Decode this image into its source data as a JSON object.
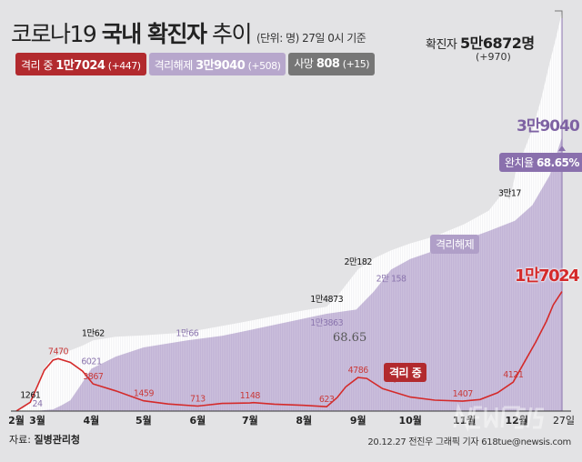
{
  "header": {
    "title_light": "코로나19",
    "title_bold": "국내 확진자",
    "title_tail": "추이",
    "subtitle": "(단위: 명) 27일 0시 기준"
  },
  "legend": [
    {
      "label": "격리 중",
      "value": "1만7024",
      "delta": "(+447)",
      "color": "#b22a2e"
    },
    {
      "label": "격리해제",
      "value": "3만9040",
      "delta": "(+508)",
      "color": "#b7a7cc"
    },
    {
      "label": "사망",
      "value": "808",
      "delta": "(+15)",
      "color": "#767676"
    }
  ],
  "total": {
    "label": "확진자",
    "value": "5만6872명",
    "delta": "(+970)"
  },
  "badges": {
    "released_end": "3만9040",
    "recovery_rate_label": "완치율",
    "recovery_rate_value": "68.65%",
    "released_tag": "격리해제",
    "isolation_tag": "격리 중",
    "isolation_end": "1만7024",
    "stray_text": "68.65"
  },
  "footer": {
    "source_label": "자료:",
    "source": "질병관리청",
    "credit": "20.12.27 전진우 그래픽 기자 618tue@newsis.com",
    "watermark": "NEWSIS"
  },
  "chart_data": {
    "type": "area",
    "colors": {
      "confirmed": "#ffffff",
      "released": "#c9bddb",
      "isolation": "#d42a2a",
      "background": "#e3e3e5"
    },
    "x_ticks": [
      {
        "date": "2020-02-18",
        "label": "2월"
      },
      {
        "date": "2020-03-01",
        "label": "3월"
      },
      {
        "date": "2020-04-01",
        "label": "4월"
      },
      {
        "date": "2020-05-01",
        "label": "5월"
      },
      {
        "date": "2020-06-01",
        "label": "6월"
      },
      {
        "date": "2020-07-01",
        "label": "7월"
      },
      {
        "date": "2020-08-01",
        "label": "8월"
      },
      {
        "date": "2020-09-01",
        "label": "9월"
      },
      {
        "date": "2020-10-01",
        "label": "10월"
      },
      {
        "date": "2020-11-01",
        "label": "11월"
      },
      {
        "date": "2020-12-01",
        "label": "12월"
      },
      {
        "date": "2020-12-27",
        "label": "27일"
      }
    ],
    "xlim": [
      "2020-02-18",
      "2020-12-27"
    ],
    "ylim": [
      0,
      57000
    ],
    "series": [
      {
        "key": "confirmed",
        "points": [
          [
            "2020-02-18",
            31
          ],
          [
            "2020-02-22",
            433
          ],
          [
            "2020-02-26",
            1261
          ],
          [
            "2020-02-29",
            3150
          ],
          [
            "2020-03-04",
            5621
          ],
          [
            "2020-03-08",
            7134
          ],
          [
            "2020-03-13",
            7979
          ],
          [
            "2020-03-20",
            8652
          ],
          [
            "2020-03-27",
            9332
          ],
          [
            "2020-04-02",
            10062
          ],
          [
            "2020-04-15",
            10591
          ],
          [
            "2020-05-01",
            10774
          ],
          [
            "2020-05-20",
            11110
          ],
          [
            "2020-06-01",
            11503
          ],
          [
            "2020-06-15",
            12121
          ],
          [
            "2020-07-01",
            12850
          ],
          [
            "2020-07-15",
            13551
          ],
          [
            "2020-08-01",
            14336
          ],
          [
            "2020-08-14",
            14873
          ],
          [
            "2020-08-20",
            16346
          ],
          [
            "2020-08-25",
            17945
          ],
          [
            "2020-09-01",
            20182
          ],
          [
            "2020-09-10",
            21743
          ],
          [
            "2020-09-20",
            22893
          ],
          [
            "2020-10-01",
            23889
          ],
          [
            "2020-10-15",
            24889
          ],
          [
            "2020-11-01",
            26635
          ],
          [
            "2020-11-15",
            28546
          ],
          [
            "2020-11-24",
            31353
          ],
          [
            "2020-11-27",
            30017
          ],
          [
            "2020-12-01",
            34652
          ],
          [
            "2020-12-05",
            36915
          ],
          [
            "2020-12-10",
            40098
          ],
          [
            "2020-12-15",
            44364
          ],
          [
            "2020-12-20",
            49665
          ],
          [
            "2020-12-24",
            53533
          ],
          [
            "2020-12-27",
            56872
          ]
        ]
      },
      {
        "key": "released",
        "points": [
          [
            "2020-02-18",
            12
          ],
          [
            "2020-03-01",
            24
          ],
          [
            "2020-03-10",
            247
          ],
          [
            "2020-03-15",
            834
          ],
          [
            "2020-03-20",
            1540
          ],
          [
            "2020-03-26",
            3730
          ],
          [
            "2020-04-01",
            6021
          ],
          [
            "2020-04-15",
            7757
          ],
          [
            "2020-05-01",
            9072
          ],
          [
            "2020-05-26",
            10066
          ],
          [
            "2020-06-15",
            10730
          ],
          [
            "2020-07-01",
            11537
          ],
          [
            "2020-08-01",
            13183
          ],
          [
            "2020-08-14",
            13863
          ],
          [
            "2020-08-31",
            14461
          ],
          [
            "2020-09-10",
            17023
          ],
          [
            "2020-09-20",
            20158
          ],
          [
            "2020-10-01",
            21666
          ],
          [
            "2020-10-15",
            22863
          ],
          [
            "2020-11-01",
            24395
          ],
          [
            "2020-11-15",
            25645
          ],
          [
            "2020-11-30",
            27103
          ],
          [
            "2020-12-10",
            29332
          ],
          [
            "2020-12-20",
            33610
          ],
          [
            "2020-12-27",
            39040
          ]
        ]
      },
      {
        "key": "isolation",
        "points": [
          [
            "2020-02-18",
            19
          ],
          [
            "2020-02-26",
            1261
          ],
          [
            "2020-03-01",
            3525
          ],
          [
            "2020-03-05",
            5800
          ],
          [
            "2020-03-10",
            7260
          ],
          [
            "2020-03-13",
            7470
          ],
          [
            "2020-03-20",
            6934
          ],
          [
            "2020-03-27",
            5684
          ],
          [
            "2020-04-02",
            3867
          ],
          [
            "2020-04-15",
            2873
          ],
          [
            "2020-05-01",
            1459
          ],
          [
            "2020-05-15",
            1006
          ],
          [
            "2020-06-01",
            713
          ],
          [
            "2020-06-15",
            1090
          ],
          [
            "2020-07-01",
            1148
          ],
          [
            "2020-07-03",
            1200
          ],
          [
            "2020-07-15",
            990
          ],
          [
            "2020-08-01",
            822
          ],
          [
            "2020-08-14",
            623
          ],
          [
            "2020-08-20",
            1920
          ],
          [
            "2020-08-25",
            3460
          ],
          [
            "2020-09-01",
            4786
          ],
          [
            "2020-09-06",
            4657
          ],
          [
            "2020-09-15",
            3200
          ],
          [
            "2020-10-01",
            2000
          ],
          [
            "2020-10-15",
            1551
          ],
          [
            "2020-10-31",
            1407
          ],
          [
            "2020-11-10",
            1650
          ],
          [
            "2020-11-20",
            2600
          ],
          [
            "2020-11-29",
            4121
          ],
          [
            "2020-12-05",
            6780
          ],
          [
            "2020-12-12",
            9840
          ],
          [
            "2020-12-18",
            12750
          ],
          [
            "2020-12-22",
            15130
          ],
          [
            "2020-12-27",
            17024
          ]
        ]
      }
    ],
    "data_labels": [
      {
        "series": "confirmed",
        "date": "2020-02-26",
        "text": "1261"
      },
      {
        "series": "confirmed",
        "date": "2020-04-02",
        "text": "1만62"
      },
      {
        "series": "confirmed",
        "date": "2020-08-14",
        "text": "1만4873"
      },
      {
        "series": "confirmed",
        "date": "2020-09-01",
        "text": "2만182"
      },
      {
        "series": "confirmed",
        "date": "2020-11-27",
        "text": "3만17"
      },
      {
        "series": "released",
        "date": "2020-03-01",
        "text": "24"
      },
      {
        "series": "released",
        "date": "2020-04-01",
        "text": "6021"
      },
      {
        "series": "released",
        "date": "2020-05-26",
        "text": "1만66"
      },
      {
        "series": "released",
        "date": "2020-08-14",
        "text": "1만3863"
      },
      {
        "series": "released",
        "date": "2020-09-20",
        "text": "2만 158"
      },
      {
        "series": "isolation",
        "date": "2020-03-13",
        "text": "7470"
      },
      {
        "series": "isolation",
        "date": "2020-04-02",
        "text": "3867"
      },
      {
        "series": "isolation",
        "date": "2020-05-01",
        "text": "1459"
      },
      {
        "series": "isolation",
        "date": "2020-06-01",
        "text": "713"
      },
      {
        "series": "isolation",
        "date": "2020-07-01",
        "text": "1148"
      },
      {
        "series": "isolation",
        "date": "2020-08-14",
        "text": "623"
      },
      {
        "series": "isolation",
        "date": "2020-09-01",
        "text": "4786"
      },
      {
        "series": "isolation",
        "date": "2020-10-31",
        "text": "1407"
      },
      {
        "series": "isolation",
        "date": "2020-11-29",
        "text": "4121"
      }
    ]
  }
}
